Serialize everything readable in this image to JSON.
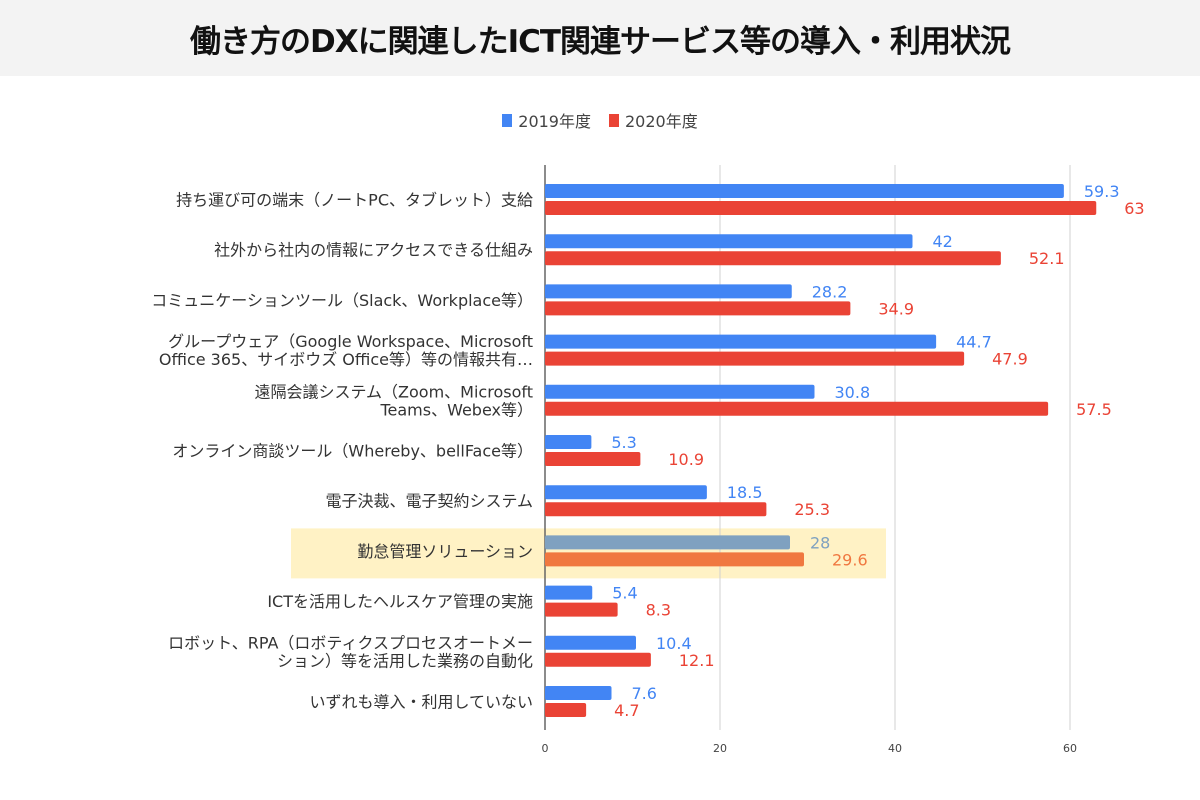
{
  "title": "働き方のDXに関連したICT関連サービス等の導入・利用状況",
  "legend": [
    {
      "label": "2019年度",
      "color": "#4285f4"
    },
    {
      "label": "2020年度",
      "color": "#ea4335"
    }
  ],
  "chart_data": {
    "type": "bar",
    "orientation": "horizontal",
    "title": "働き方のDXに関連したICT関連サービス等の導入・利用状況",
    "xlabel": "",
    "ylabel": "",
    "xlim": [
      0,
      70
    ],
    "ticks": [
      0,
      20,
      40,
      60
    ],
    "grid": true,
    "legend_position": "top",
    "categories": [
      [
        "持ち運び可の端末（ノートPC、タブレット）支給"
      ],
      [
        "社外から社内の情報にアクセスできる仕組み"
      ],
      [
        "コミュニケーションツール（Slack、Workplace等）"
      ],
      [
        "グループウェア（Google Workspace、Microsoft",
        "Office 365、サイボウズ Office等）等の情報共有…"
      ],
      [
        "遠隔会議システム（Zoom、Microsoft",
        "Teams、Webex等）"
      ],
      [
        "オンライン商談ツール（Whereby、bellFace等）"
      ],
      [
        "電子決裁、電子契約システム"
      ],
      [
        "勤怠管理ソリューション"
      ],
      [
        "ICTを活用したヘルスケア管理の実施"
      ],
      [
        "ロボット、RPA（ロボティクスプロセスオートメー",
        "ション）等を活用した業務の自動化"
      ],
      [
        "いずれも導入・利用していない"
      ]
    ],
    "series": [
      {
        "name": "2019年度",
        "color": "#4285f4",
        "highlight_color": "#7fa1c0",
        "values": [
          59.3,
          42,
          28.2,
          44.7,
          30.8,
          5.3,
          18.5,
          28,
          5.4,
          10.4,
          7.6
        ]
      },
      {
        "name": "2020年度",
        "color": "#ea4335",
        "highlight_color": "#f07840",
        "values": [
          63,
          52.1,
          34.9,
          47.9,
          57.5,
          10.9,
          25.3,
          29.6,
          8.3,
          12.1,
          4.7
        ]
      }
    ],
    "highlighted_category_index": 7,
    "highlight_background": "#fff2c5"
  }
}
